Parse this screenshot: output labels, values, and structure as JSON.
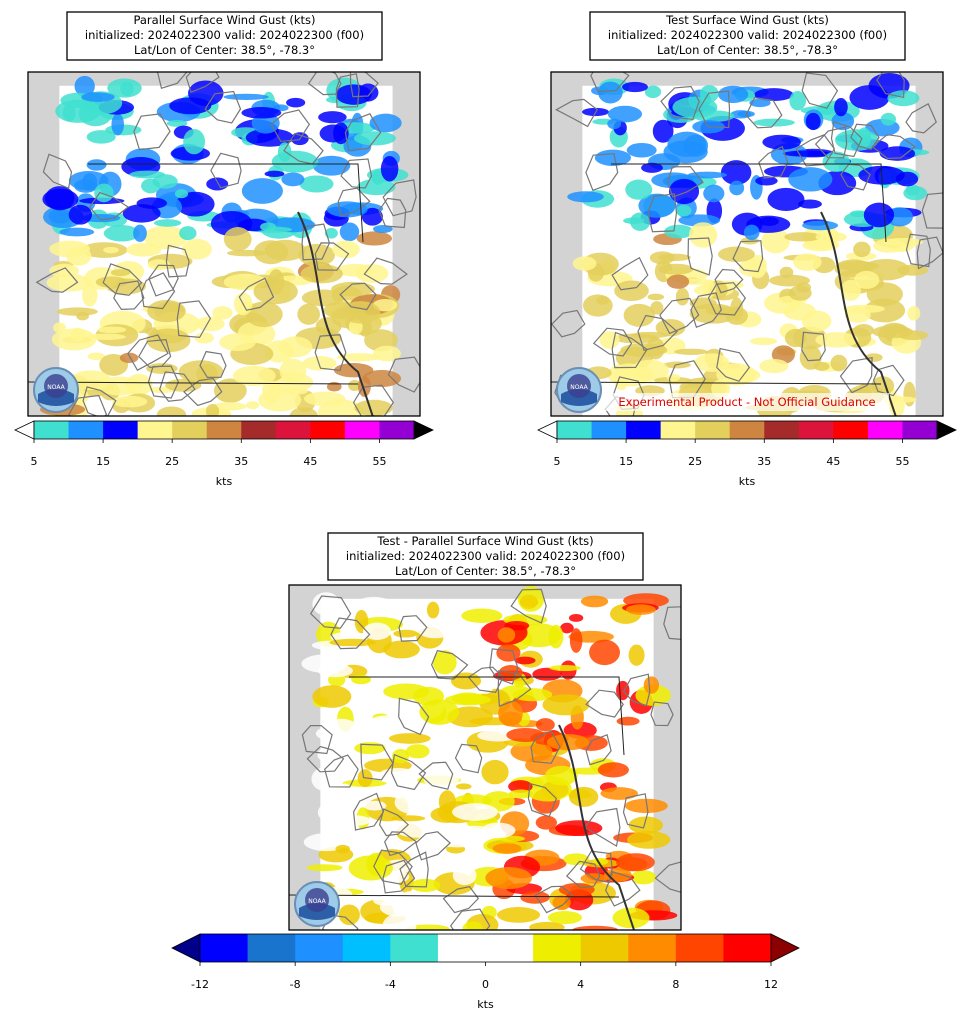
{
  "panels": [
    {
      "title": [
        "Parallel Surface Wind Gust (kts)",
        "initialized: 2024022300 valid: 2024022300 (f00)",
        "Lat/Lon of Center: 38.5°, -78.3°"
      ],
      "logo": "NOAA",
      "colorbar": {
        "bounds": [
          5,
          10,
          15,
          20,
          25,
          30,
          35,
          40,
          45,
          50,
          55,
          60
        ],
        "colors": [
          "#40e0d0",
          "#1e90ff",
          "#0000ff",
          "#fff68f",
          "#e3cf5b",
          "#cd853f",
          "#a52a2a",
          "#dc143c",
          "#ff0000",
          "#ff00ff",
          "#9400d3"
        ],
        "under": "#ffffff",
        "over": "#000000",
        "ticks": [
          5,
          15,
          25,
          35,
          45,
          55
        ],
        "label": "kts"
      }
    },
    {
      "title": [
        "Test Surface Wind Gust (kts)",
        "initialized: 2024022300 valid: 2024022300 (f00)",
        "Lat/Lon of Center: 38.5°, -78.3°"
      ],
      "logo": "NOAA",
      "watermark": "Experimental Product - Not Official Guidance",
      "colorbar": {
        "bounds": [
          5,
          10,
          15,
          20,
          25,
          30,
          35,
          40,
          45,
          50,
          55,
          60
        ],
        "colors": [
          "#40e0d0",
          "#1e90ff",
          "#0000ff",
          "#fff68f",
          "#e3cf5b",
          "#cd853f",
          "#a52a2a",
          "#dc143c",
          "#ff0000",
          "#ff00ff",
          "#9400d3"
        ],
        "under": "#ffffff",
        "over": "#000000",
        "ticks": [
          5,
          15,
          25,
          35,
          45,
          55
        ],
        "label": "kts"
      }
    },
    {
      "title": [
        "Test - Parallel Surface Wind Gust (kts)",
        "initialized: 2024022300 valid: 2024022300 (f00)",
        "Lat/Lon of Center: 38.5°, -78.3°"
      ],
      "logo": "NOAA",
      "colorbar": {
        "bounds": [
          -12,
          -10,
          -8,
          -6,
          -4,
          -2,
          0,
          2,
          4,
          6,
          8,
          10,
          12
        ],
        "colors": [
          "#0000ff",
          "#1874cd",
          "#1e90ff",
          "#00bfff",
          "#40e0d0",
          "#ffffff",
          "#ffffff",
          "#eeee00",
          "#eec900",
          "#ff8c00",
          "#ff4500",
          "#ff0000"
        ],
        "under": "#00008b",
        "over": "#8b0000",
        "ticks": [
          -12,
          -8,
          -4,
          0,
          4,
          8,
          12
        ],
        "label": "kts"
      }
    }
  ]
}
